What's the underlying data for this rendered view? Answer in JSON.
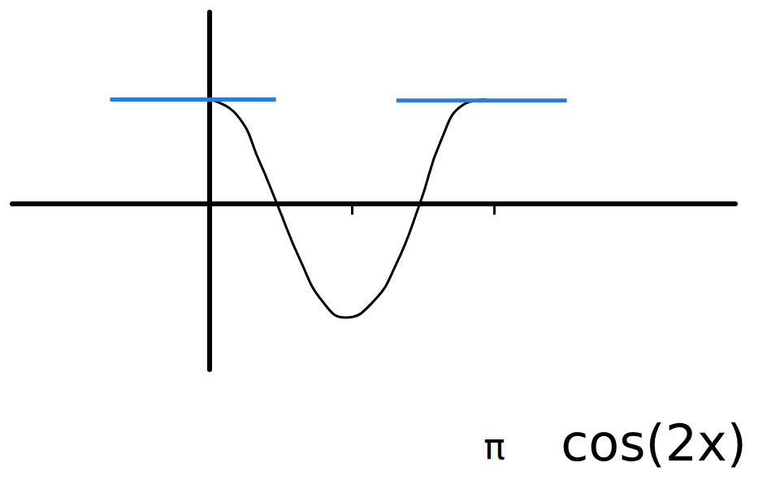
{
  "chart_data": {
    "type": "line",
    "title": "cos(2x)",
    "x": [
      0,
      0.3,
      0.55,
      0.74,
      1.0,
      1.25,
      1.5,
      1.8,
      2.05,
      2.32,
      2.55,
      2.8,
      3.05
    ],
    "values": [
      1,
      0.85,
      0.4,
      0,
      -0.55,
      -0.95,
      -1.1,
      -0.95,
      -0.6,
      0,
      0.6,
      0.95,
      1.0
    ],
    "color": "#000000",
    "xlim": [
      -2.18,
      5.8
    ],
    "ylim": [
      -1.6,
      1.84
    ],
    "xticks": [
      {
        "value": 1.5708,
        "label": null
      },
      {
        "value": 3.1416,
        "label": "π"
      }
    ],
    "yticks": [],
    "tick_labels": "x",
    "grid": false,
    "line_style": "solid",
    "reference_lines": [
      {
        "x": [
          -1.1,
          0.73
        ],
        "y": [
          1,
          1
        ],
        "color": "#1e7fe8"
      },
      {
        "x": [
          2.06,
          3.94
        ],
        "y": [
          0.99,
          0.99
        ],
        "color": "#1e7fe8"
      }
    ]
  }
}
